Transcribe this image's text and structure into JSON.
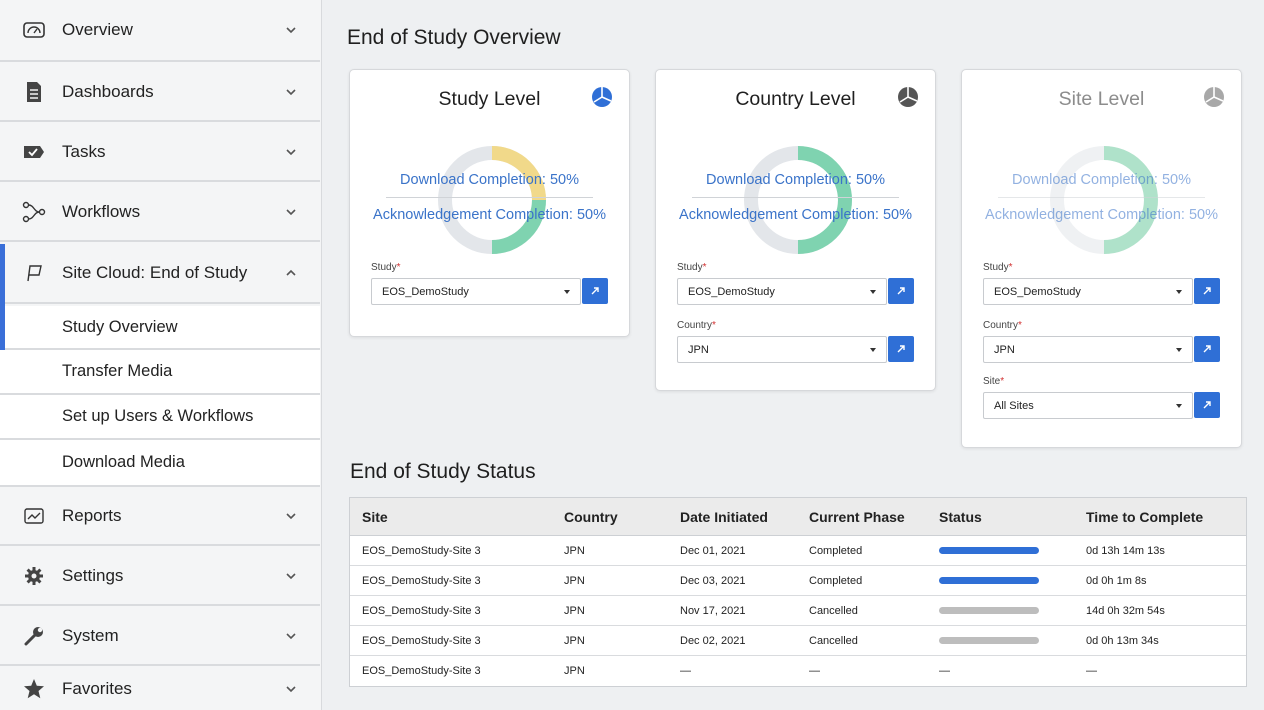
{
  "sidebar": {
    "overview": "Overview",
    "dashboards": "Dashboards",
    "tasks": "Tasks",
    "workflows": "Workflows",
    "site_cloud": "Site Cloud: End of Study",
    "sub_items": [
      "Study Overview",
      "Transfer Media",
      "Set up Users & Workflows",
      "Download Media"
    ],
    "reports": "Reports",
    "settings": "Settings",
    "system": "System",
    "favorites": "Favorites"
  },
  "overview_title": "End of Study Overview",
  "cards": {
    "study": {
      "title": "Study Level",
      "download": "Download Completion: 50%",
      "ack": "Acknowledgement Completion: 50%",
      "study_label": "Study",
      "study_value": "EOS_DemoStudy"
    },
    "country": {
      "title": "Country Level",
      "download": "Download Completion: 50%",
      "ack": "Acknowledgement Completion: 50%",
      "study_label": "Study",
      "study_value": "EOS_DemoStudy",
      "country_label": "Country",
      "country_value": "JPN"
    },
    "site": {
      "title": "Site Level",
      "download": "Download Completion: 50%",
      "ack": "Acknowledgement Completion: 50%",
      "study_label": "Study",
      "study_value": "EOS_DemoStudy",
      "country_label": "Country",
      "country_value": "JPN",
      "site_label": "Site",
      "site_value": "All Sites"
    }
  },
  "status_title": "End of Study Status",
  "table": {
    "headers": [
      "Site",
      "Country",
      "Date Initiated",
      "Current Phase",
      "Status",
      "Time to Complete"
    ],
    "rows": [
      {
        "site": "EOS_DemoStudy-Site 3",
        "country": "JPN",
        "date": "Dec 01, 2021",
        "phase": "Completed",
        "status": "complete",
        "time": "0d  13h  14m  13s"
      },
      {
        "site": "EOS_DemoStudy-Site 3",
        "country": "JPN",
        "date": "Dec 03, 2021",
        "phase": "Completed",
        "status": "complete",
        "time": "0d  0h  1m  8s"
      },
      {
        "site": "EOS_DemoStudy-Site 3",
        "country": "JPN",
        "date": "Nov 17, 2021",
        "phase": "Cancelled",
        "status": "cancelled",
        "time": "14d  0h  32m  54s"
      },
      {
        "site": "EOS_DemoStudy-Site 3",
        "country": "JPN",
        "date": "Dec 02, 2021",
        "phase": "Cancelled",
        "status": "cancelled",
        "time": "0d  0h  13m  34s"
      },
      {
        "site": "EOS_DemoStudy-Site 3",
        "country": "JPN",
        "date": "—",
        "phase": "—",
        "status": "—",
        "time": "—"
      }
    ]
  },
  "colors": {
    "accent": "#2f6fd6",
    "status_complete": "#2f6fd6",
    "status_cancelled": "#bdbdbd",
    "donut_green": "#7fd3b0",
    "donut_yellow": "#f1d98a",
    "donut_empty": "#e3e6ea"
  },
  "icons": {
    "overview": "gauge-icon",
    "dashboards": "document-icon",
    "tasks": "task-check-icon",
    "workflows": "workflow-icon",
    "site_cloud": "flag-icon",
    "reports": "chart-icon",
    "settings": "gear-icon",
    "system": "wrench-icon",
    "favorites": "star-icon",
    "card": "pie-chart-icon",
    "go": "arrow-icon"
  }
}
